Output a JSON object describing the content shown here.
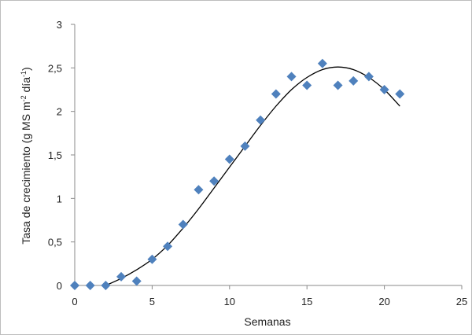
{
  "chart_data": {
    "type": "scatter",
    "title": "",
    "xlabel": "Semanas",
    "ylabel": {
      "prefix": "Tasa de crecimiento (g MS m",
      "sup1": "-2",
      "mid": " día",
      "sup2": "-1",
      "suffix": ")"
    },
    "xlim": [
      0,
      25
    ],
    "ylim": [
      0,
      3
    ],
    "xticks": [
      0,
      5,
      10,
      15,
      20,
      25
    ],
    "yticks": [
      0,
      0.5,
      1,
      1.5,
      2,
      2.5,
      3
    ],
    "ytick_labels": [
      "0",
      "0,5",
      "1",
      "1,5",
      "2",
      "2,5",
      "3"
    ],
    "xtick_labels": [
      "0",
      "5",
      "10",
      "15",
      "20",
      "25"
    ],
    "grid": false,
    "legend": "none",
    "colors": {
      "points": "#4F81BD",
      "curve": "#000000",
      "axis": "#888888"
    },
    "series": [
      {
        "kind": "points",
        "marker": "diamond",
        "x": [
          0,
          1,
          2,
          3,
          4,
          5,
          6,
          7,
          8,
          9,
          10,
          11,
          12,
          13,
          14,
          15,
          16,
          17,
          18,
          19,
          20,
          21
        ],
        "y": [
          0,
          0,
          0,
          0.1,
          0.05,
          0.3,
          0.45,
          0.7,
          1.1,
          1.2,
          1.45,
          1.6,
          1.9,
          2.2,
          2.4,
          2.3,
          2.55,
          2.3,
          2.35,
          2.4,
          2.25,
          2.2
        ]
      },
      {
        "kind": "curve",
        "x": [
          2,
          3,
          4,
          5,
          6,
          7,
          8,
          9,
          10,
          11,
          12,
          13,
          14,
          15,
          16,
          17,
          18,
          19,
          20,
          21
        ],
        "y": [
          0.0,
          0.08,
          0.18,
          0.3,
          0.46,
          0.66,
          0.88,
          1.12,
          1.36,
          1.6,
          1.84,
          2.06,
          2.25,
          2.39,
          2.48,
          2.51,
          2.48,
          2.39,
          2.25,
          2.06
        ]
      }
    ]
  }
}
